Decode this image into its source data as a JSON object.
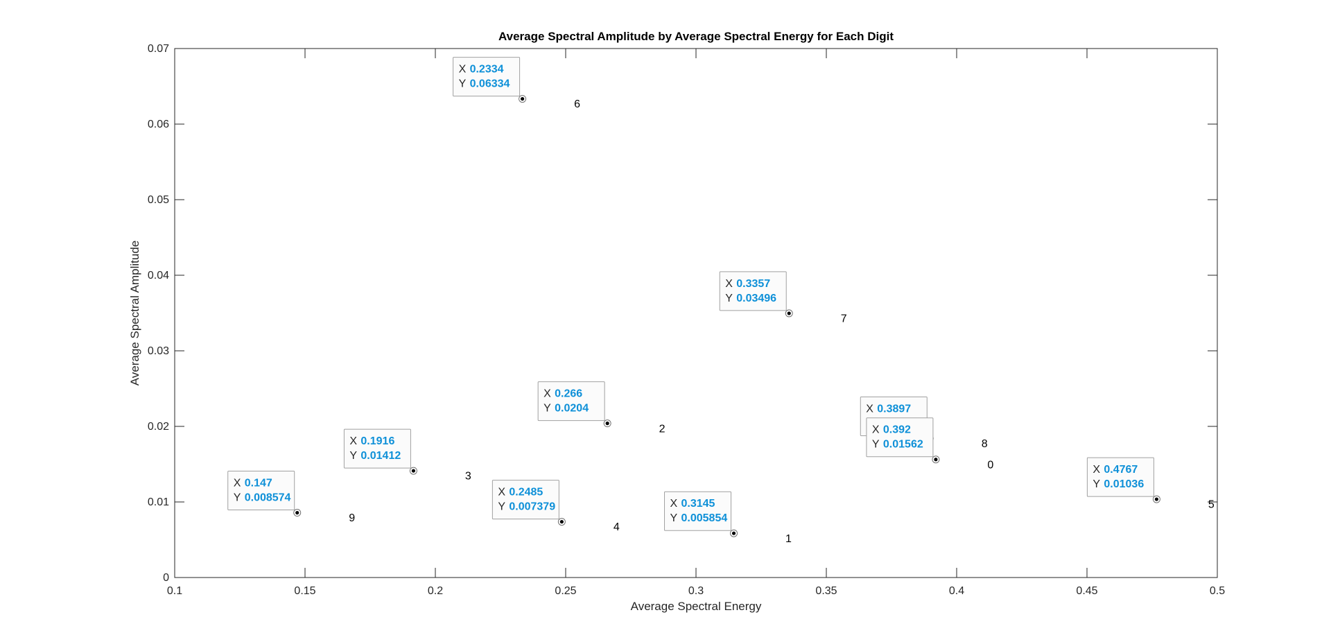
{
  "chart_data": {
    "type": "scatter",
    "title": "Average Spectral Amplitude by Average Spectral Energy for Each Digit",
    "xlabel": "Average Spectral Energy",
    "ylabel": "Average Spectral Amplitude",
    "xlim": [
      0.1,
      0.5
    ],
    "ylim": [
      0,
      0.07
    ],
    "xticks": [
      "0.1",
      "0.15",
      "0.2",
      "0.25",
      "0.3",
      "0.35",
      "0.4",
      "0.45",
      "0.5"
    ],
    "yticks": [
      "0",
      "0.01",
      "0.02",
      "0.03",
      "0.04",
      "0.05",
      "0.06",
      "0.07"
    ],
    "grid": false,
    "points": [
      {
        "x": 0.392,
        "y": 0.01562,
        "label": "0"
      },
      {
        "x": 0.3145,
        "y": 0.005854,
        "label": "1"
      },
      {
        "x": 0.266,
        "y": 0.0204,
        "label": "2"
      },
      {
        "x": 0.1916,
        "y": 0.01412,
        "label": "3"
      },
      {
        "x": 0.2485,
        "y": 0.007379,
        "label": "4"
      },
      {
        "x": 0.4767,
        "y": 0.01036,
        "label": "5"
      },
      {
        "x": 0.2334,
        "y": 0.06334,
        "label": "6"
      },
      {
        "x": 0.3357,
        "y": 0.03496,
        "label": "7"
      },
      {
        "x": 0.3897,
        "y": 0.01839,
        "label": "8"
      },
      {
        "x": 0.147,
        "y": 0.008574,
        "label": "9"
      }
    ],
    "datatips": [
      {
        "x_text": "0.2334",
        "y_text": "0.06334"
      },
      {
        "x_text": "0.3357",
        "y_text": "0.03496"
      },
      {
        "x_text": "0.266",
        "y_text": "0.0204"
      },
      {
        "x_text": "0.3897",
        "y_text": "0.01839"
      },
      {
        "x_text": "0.1916",
        "y_text": "0.01412"
      },
      {
        "x_text": "0.392",
        "y_text": "0.01562"
      },
      {
        "x_text": "0.147",
        "y_text": "0.008574"
      },
      {
        "x_text": "0.2485",
        "y_text": "0.007379"
      },
      {
        "x_text": "0.3145",
        "y_text": "0.005854"
      },
      {
        "x_text": "0.4767",
        "y_text": "0.01036"
      }
    ],
    "datatip_key_x": "X",
    "datatip_key_y": "Y",
    "colors": {
      "axis": "#262626",
      "datatip_value": "#0E90D8",
      "datatip_border": "#A0A0A0",
      "datatip_fill": "#FBFBFB",
      "marker": "#000000"
    }
  }
}
